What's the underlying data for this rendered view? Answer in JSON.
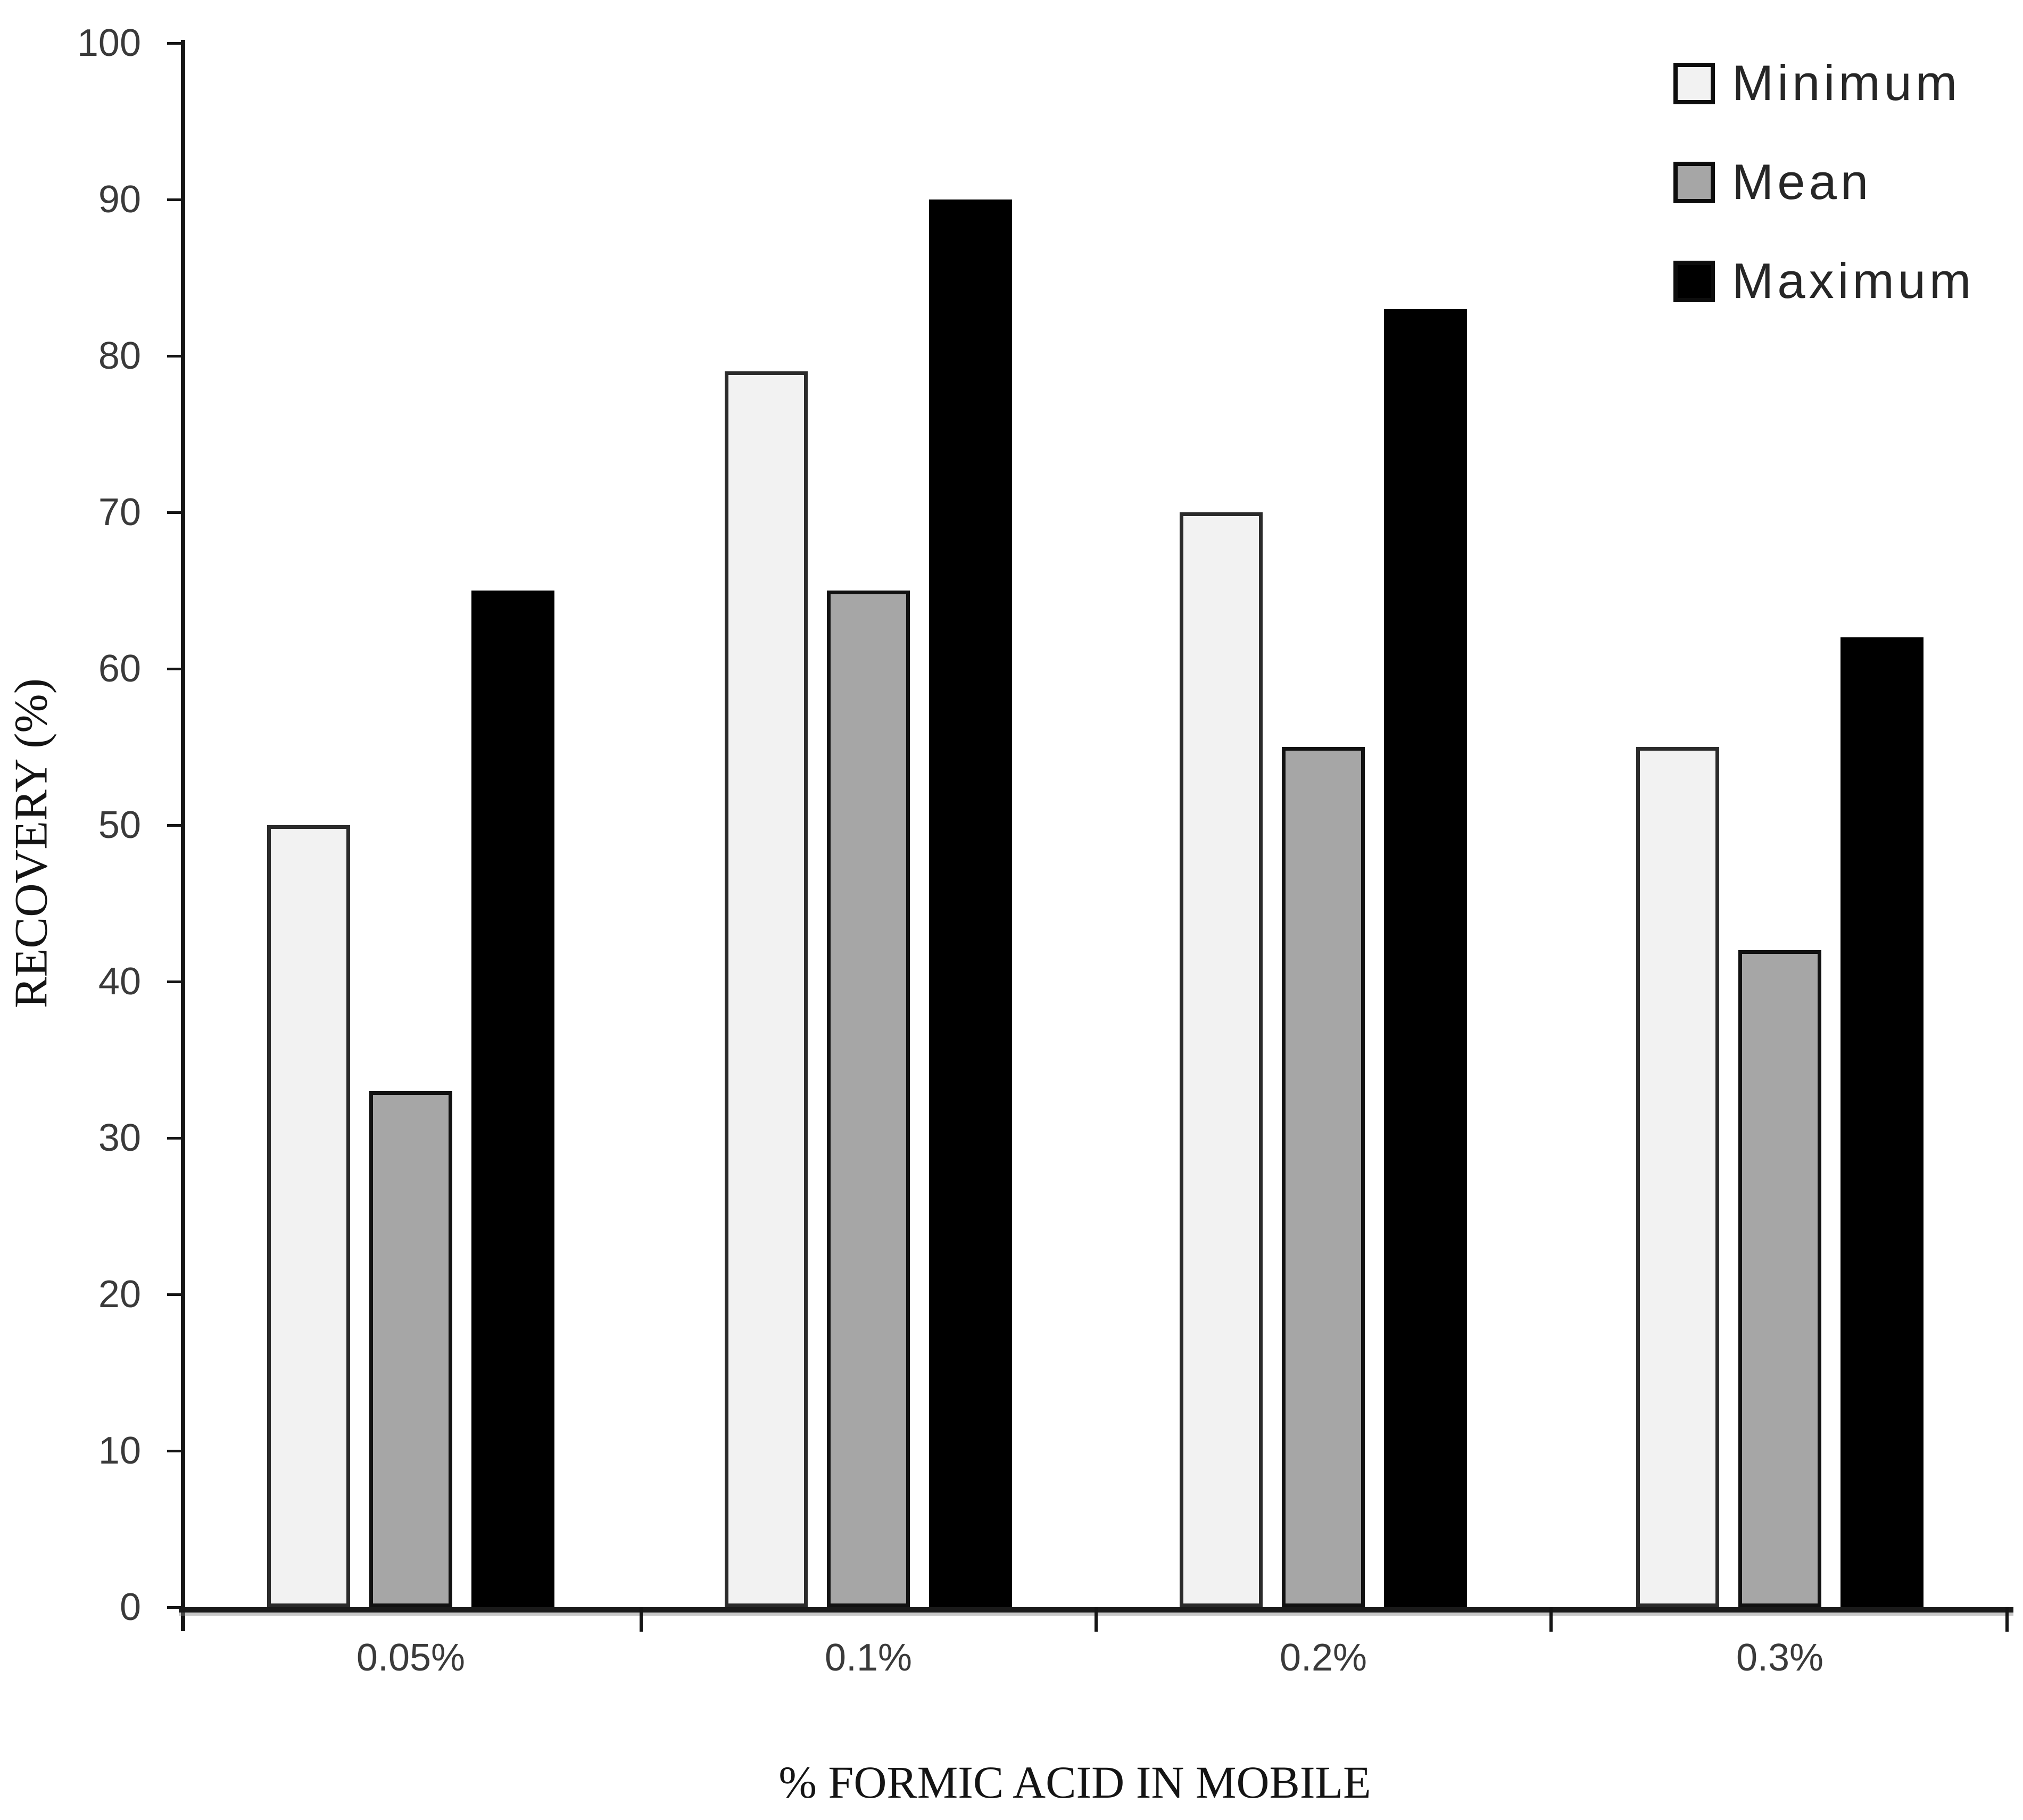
{
  "figure": {
    "background": "#ffffff",
    "text_color": "#3a3a3a",
    "axis_color": "#151515"
  },
  "chart_data": {
    "type": "bar",
    "title": "",
    "xlabel": "% FORMIC ACID IN MOBILE",
    "ylabel": "RECOVERY (%)",
    "categories": [
      "0.05%",
      "0.1%",
      "0.2%",
      "0.3%"
    ],
    "series": [
      {
        "name": "Minimum",
        "values": [
          50,
          79,
          70,
          55
        ],
        "fill": "#f2f2f2",
        "border": "#2b2b2b"
      },
      {
        "name": "Mean",
        "values": [
          33,
          65,
          55,
          42
        ],
        "fill": "#a6a6a6",
        "border": "#111111"
      },
      {
        "name": "Maximum",
        "values": [
          65,
          90,
          83,
          62
        ],
        "fill": "#000000",
        "border": "#000000"
      }
    ],
    "ylim": [
      0,
      100
    ],
    "yticks": [
      0,
      10,
      20,
      30,
      40,
      50,
      60,
      70,
      80,
      90,
      100
    ],
    "grid": false,
    "legend_position": "top-right"
  }
}
